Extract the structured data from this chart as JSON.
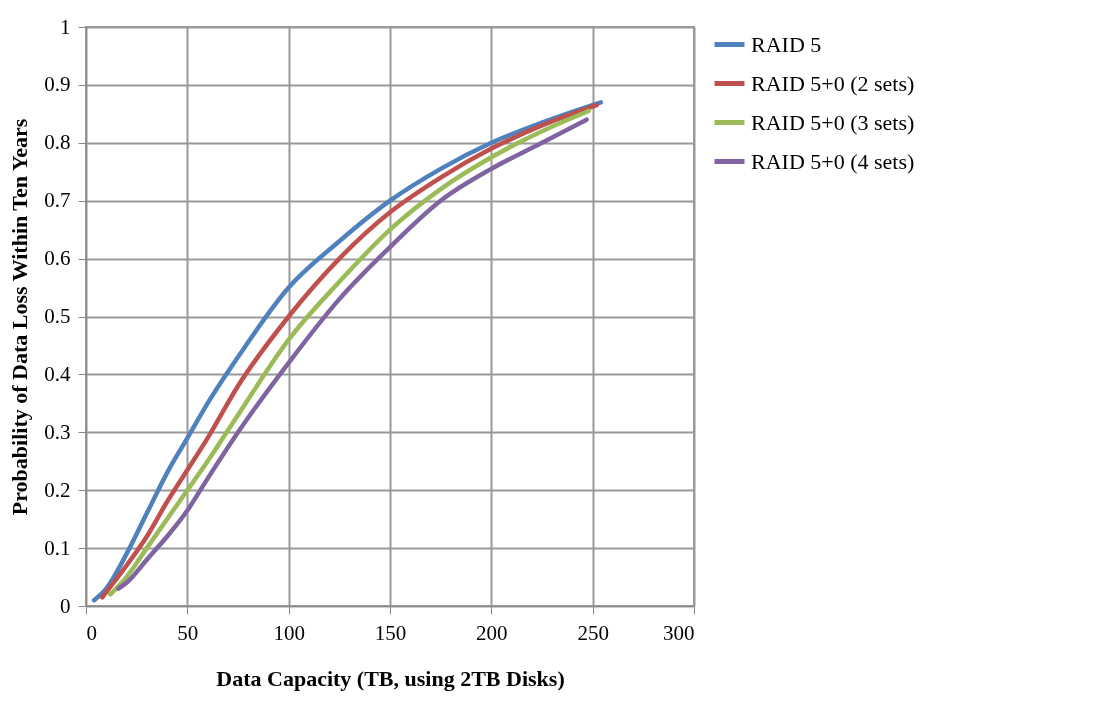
{
  "chart_data": {
    "type": "line",
    "xlabel": "Data Capacity (TB, using 2TB Disks)",
    "ylabel": "Probability of Data Loss Within Ten Years",
    "xlim": [
      0,
      300
    ],
    "xticks": [
      0,
      50,
      100,
      150,
      200,
      250,
      300
    ],
    "ylim": [
      0,
      1
    ],
    "yticks": [
      0,
      0.1,
      0.2,
      0.3,
      0.4,
      0.5,
      0.6,
      0.7,
      0.8,
      0.9,
      1
    ],
    "grid": true,
    "legend": "right",
    "marker": "none",
    "line_style": "solid",
    "series": [
      {
        "name": "RAID 5",
        "color": "#4f81bd",
        "x": [
          4,
          10,
          20,
          30,
          40,
          50,
          60,
          75,
          100,
          125,
          150,
          175,
          200,
          225,
          254
        ],
        "values": [
          0.01,
          0.03,
          0.09,
          0.16,
          0.23,
          0.29,
          0.35,
          0.43,
          0.55,
          0.63,
          0.7,
          0.755,
          0.8,
          0.835,
          0.87
        ]
      },
      {
        "name": "RAID 5+0 (2 sets)",
        "color": "#c0504d",
        "x": [
          8,
          20,
          30,
          40,
          50,
          60,
          75,
          100,
          125,
          150,
          175,
          200,
          225,
          252
        ],
        "values": [
          0.015,
          0.07,
          0.12,
          0.18,
          0.235,
          0.29,
          0.38,
          0.5,
          0.6,
          0.68,
          0.74,
          0.79,
          0.83,
          0.865
        ]
      },
      {
        "name": "RAID 5+0 (3 sets)",
        "color": "#9bbb59",
        "x": [
          12,
          20,
          30,
          40,
          50,
          60,
          75,
          100,
          125,
          150,
          175,
          200,
          225,
          248
        ],
        "values": [
          0.02,
          0.05,
          0.1,
          0.15,
          0.2,
          0.25,
          0.33,
          0.46,
          0.56,
          0.65,
          0.72,
          0.775,
          0.82,
          0.855
        ]
      },
      {
        "name": "RAID 5+0 (4 sets)",
        "color": "#8064a2",
        "x": [
          16,
          20,
          30,
          40,
          50,
          60,
          75,
          100,
          125,
          150,
          175,
          200,
          225,
          247
        ],
        "values": [
          0.03,
          0.04,
          0.08,
          0.12,
          0.165,
          0.22,
          0.3,
          0.42,
          0.53,
          0.62,
          0.7,
          0.755,
          0.8,
          0.84
        ]
      }
    ]
  }
}
